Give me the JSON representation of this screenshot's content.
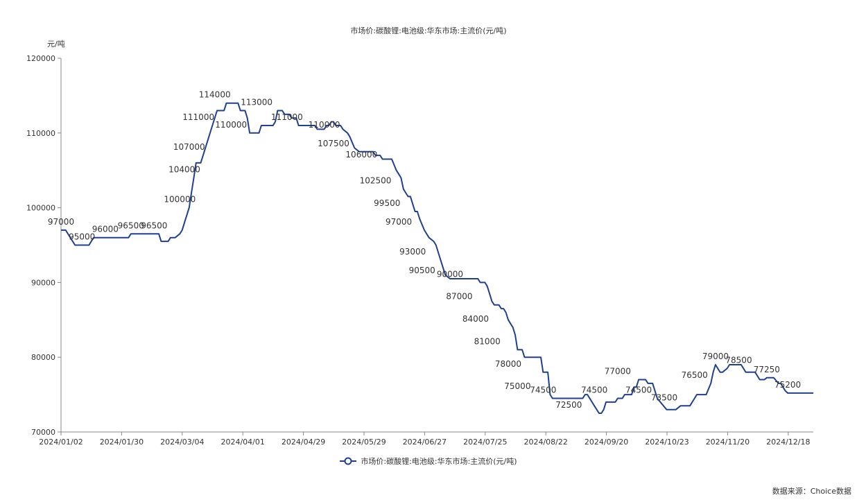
{
  "chart_data": {
    "type": "line",
    "title": "市场价:碳酸锂:电池级:华东市场:主流价(元/吨)",
    "ylabel": "元/吨",
    "source": "数据来源：Choice数据",
    "ylim": [
      70000,
      120000
    ],
    "yticks": [
      "70000",
      "80000",
      "90000",
      "100000",
      "110000",
      "120000"
    ],
    "xtick_labels": [
      "2024/01/02",
      "2024/01/30",
      "2024/03/04",
      "2024/04/01",
      "2024/04/29",
      "2024/05/29",
      "2024/06/27",
      "2024/07/25",
      "2024/08/22",
      "2024/09/20",
      "2024/10/23",
      "2024/11/20",
      "2024/12/18"
    ],
    "series": [
      {
        "name": "市场价:碳酸锂:电池级:华东市场:主流价(元/吨)",
        "color": "#1f3f8f",
        "points": [
          [
            0,
            97000
          ],
          [
            2,
            97000
          ],
          [
            4,
            96000
          ],
          [
            6,
            95000
          ],
          [
            12,
            95000
          ],
          [
            14,
            96000
          ],
          [
            29,
            96000
          ],
          [
            30,
            96500
          ],
          [
            42,
            96500
          ],
          [
            43,
            95500
          ],
          [
            46,
            95500
          ],
          [
            47,
            96000
          ],
          [
            49,
            96000
          ],
          [
            51,
            96500
          ],
          [
            52,
            97000
          ],
          [
            53,
            98000
          ],
          [
            55,
            100000
          ],
          [
            56,
            102000
          ],
          [
            57,
            104000
          ],
          [
            58,
            106000
          ],
          [
            60,
            106000
          ],
          [
            61,
            107000
          ],
          [
            63,
            109000
          ],
          [
            65,
            111000
          ],
          [
            66,
            112000
          ],
          [
            67,
            113000
          ],
          [
            70,
            113000
          ],
          [
            71,
            114000
          ],
          [
            76,
            114000
          ],
          [
            77,
            113000
          ],
          [
            79,
            113000
          ],
          [
            80,
            112000
          ],
          [
            81,
            110000
          ],
          [
            85,
            110000
          ],
          [
            86,
            111000
          ],
          [
            91,
            111000
          ],
          [
            92,
            111500
          ],
          [
            93,
            113000
          ],
          [
            95,
            113000
          ],
          [
            96,
            112500
          ],
          [
            98,
            112500
          ],
          [
            99,
            112000
          ],
          [
            101,
            112000
          ],
          [
            102,
            111000
          ],
          [
            109,
            111000
          ],
          [
            110,
            110500
          ],
          [
            113,
            110500
          ],
          [
            114,
            111000
          ],
          [
            115,
            111000
          ],
          [
            116,
            111500
          ],
          [
            117,
            111500
          ],
          [
            118,
            111000
          ],
          [
            120,
            111000
          ],
          [
            121,
            110500
          ],
          [
            123,
            110000
          ],
          [
            124,
            109500
          ],
          [
            126,
            108000
          ],
          [
            128,
            107500
          ],
          [
            134,
            107500
          ],
          [
            135,
            107000
          ],
          [
            137,
            107000
          ],
          [
            138,
            106500
          ],
          [
            142,
            106500
          ],
          [
            144,
            105000
          ],
          [
            146,
            104000
          ],
          [
            147,
            102500
          ],
          [
            149,
            101500
          ],
          [
            150,
            101500
          ],
          [
            151,
            100500
          ],
          [
            152,
            99500
          ],
          [
            153,
            99500
          ],
          [
            154,
            98500
          ],
          [
            156,
            97000
          ],
          [
            158,
            96000
          ],
          [
            160,
            95500
          ],
          [
            161,
            95000
          ],
          [
            163,
            93000
          ],
          [
            164,
            92000
          ],
          [
            165,
            91000
          ],
          [
            167,
            90500
          ],
          [
            168,
            90500
          ],
          [
            169,
            90500
          ],
          [
            170,
            90500
          ],
          [
            179,
            90500
          ],
          [
            180,
            90000
          ],
          [
            182,
            90000
          ],
          [
            183,
            89500
          ],
          [
            184,
            88500
          ],
          [
            185,
            87500
          ],
          [
            186,
            87000
          ],
          [
            188,
            87000
          ],
          [
            189,
            86500
          ],
          [
            190,
            86500
          ],
          [
            191,
            86000
          ],
          [
            192,
            85000
          ],
          [
            193,
            84500
          ],
          [
            194,
            84000
          ],
          [
            195,
            83000
          ],
          [
            196,
            81000
          ],
          [
            197,
            81000
          ],
          [
            198,
            81000
          ],
          [
            199,
            80000
          ],
          [
            206,
            80000
          ],
          [
            207,
            78000
          ],
          [
            209,
            78000
          ],
          [
            210,
            75000
          ],
          [
            211,
            74500
          ],
          [
            224,
            74500
          ],
          [
            225,
            75000
          ],
          [
            226,
            75000
          ],
          [
            227,
            74500
          ],
          [
            229,
            73500
          ],
          [
            231,
            72500
          ],
          [
            232,
            72500
          ],
          [
            233,
            73000
          ],
          [
            234,
            74000
          ],
          [
            238,
            74000
          ],
          [
            239,
            74500
          ],
          [
            241,
            74500
          ],
          [
            242,
            75000
          ],
          [
            245,
            75000
          ],
          [
            246,
            76000
          ],
          [
            247,
            76000
          ],
          [
            248,
            77000
          ],
          [
            251,
            77000
          ],
          [
            252,
            76500
          ],
          [
            254,
            76500
          ],
          [
            255,
            75500
          ],
          [
            256,
            74500
          ],
          [
            260,
            73000
          ],
          [
            264,
            73000
          ],
          [
            266,
            73500
          ],
          [
            270,
            73500
          ],
          [
            272,
            74500
          ],
          [
            273,
            75000
          ],
          [
            277,
            75000
          ],
          [
            279,
            76500
          ],
          [
            280,
            78000
          ],
          [
            281,
            79000
          ],
          [
            283,
            78000
          ],
          [
            284,
            78000
          ],
          [
            286,
            78500
          ],
          [
            287,
            79000
          ],
          [
            292,
            79000
          ],
          [
            294,
            78000
          ],
          [
            298,
            78000
          ],
          [
            300,
            77000
          ],
          [
            302,
            77000
          ],
          [
            303,
            77250
          ],
          [
            306,
            77250
          ],
          [
            308,
            76500
          ],
          [
            309,
            76500
          ],
          [
            310,
            76000
          ],
          [
            311,
            75500
          ],
          [
            312,
            75200
          ],
          [
            323,
            75200
          ]
        ]
      }
    ],
    "data_labels": [
      {
        "x": 0,
        "text": "97000"
      },
      {
        "x": 9,
        "text": "95000"
      },
      {
        "x": 19,
        "text": "96000"
      },
      {
        "x": 30,
        "text": "96500"
      },
      {
        "x": 40,
        "text": "96500"
      },
      {
        "x": 51,
        "text": "100000"
      },
      {
        "x": 53,
        "text": "104000"
      },
      {
        "x": 55,
        "text": "107000"
      },
      {
        "x": 59,
        "text": "111000"
      },
      {
        "x": 66,
        "text": "114000"
      },
      {
        "x": 73,
        "text": "110000"
      },
      {
        "x": 84,
        "text": "113000"
      },
      {
        "x": 97,
        "text": "111000"
      },
      {
        "x": 113,
        "text": "110000"
      },
      {
        "x": 117,
        "text": "107500"
      },
      {
        "x": 129,
        "text": "106000"
      },
      {
        "x": 135,
        "text": "102500"
      },
      {
        "x": 140,
        "text": "99500"
      },
      {
        "x": 145,
        "text": "97000"
      },
      {
        "x": 151,
        "text": "93000"
      },
      {
        "x": 155,
        "text": "90500"
      },
      {
        "x": 167,
        "text": "90000"
      },
      {
        "x": 171,
        "text": "87000"
      },
      {
        "x": 178,
        "text": "84000"
      },
      {
        "x": 183,
        "text": "81000"
      },
      {
        "x": 192,
        "text": "78000"
      },
      {
        "x": 196,
        "text": "75000"
      },
      {
        "x": 207,
        "text": "74500"
      },
      {
        "x": 218,
        "text": "72500"
      },
      {
        "x": 229,
        "text": "74500"
      },
      {
        "x": 239,
        "text": "77000"
      },
      {
        "x": 248,
        "text": "74500"
      },
      {
        "x": 259,
        "text": "73500"
      },
      {
        "x": 272,
        "text": "76500"
      },
      {
        "x": 281,
        "text": "79000"
      },
      {
        "x": 291,
        "text": "78500"
      },
      {
        "x": 303,
        "text": "77250"
      },
      {
        "x": 312,
        "text": "75200"
      }
    ]
  }
}
